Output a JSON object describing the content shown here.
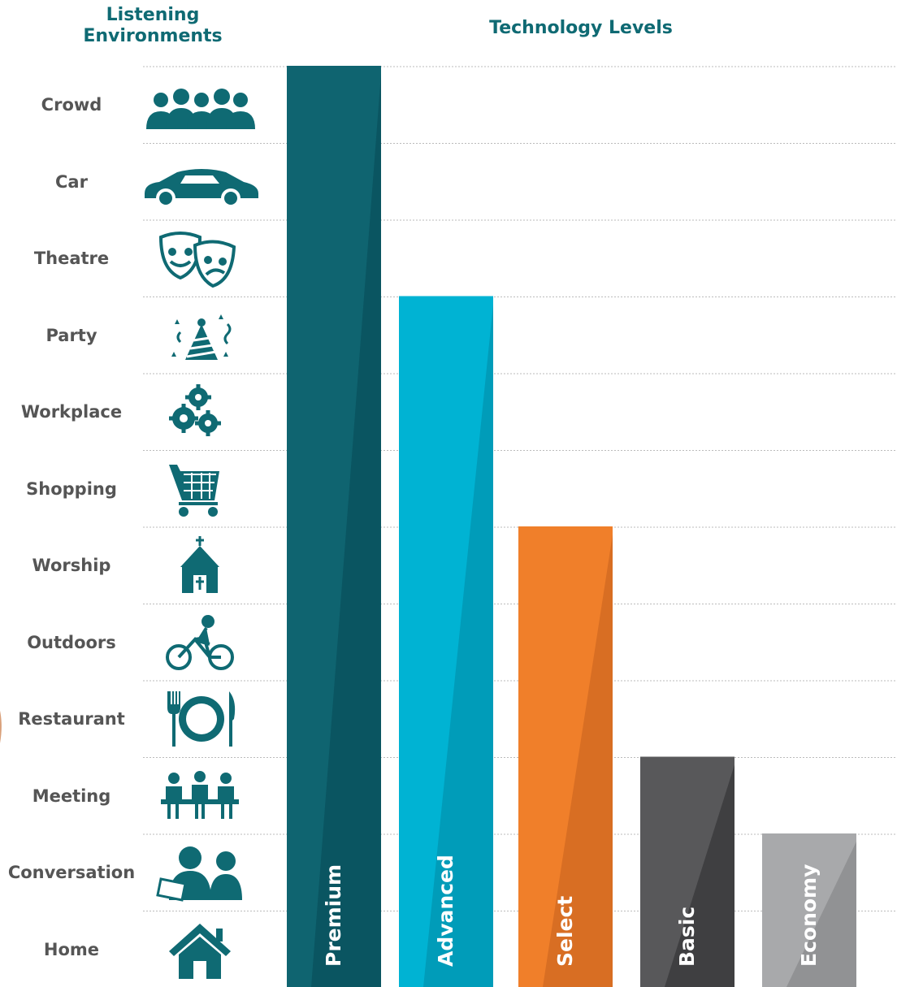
{
  "headers": {
    "left": "Listening\nEnvironments",
    "right": "Technology Levels"
  },
  "environments": [
    {
      "label": "Crowd",
      "icon": "crowd-icon"
    },
    {
      "label": "Car",
      "icon": "car-icon"
    },
    {
      "label": "Theatre",
      "icon": "theatre-masks-icon"
    },
    {
      "label": "Party",
      "icon": "party-hat-icon"
    },
    {
      "label": "Workplace",
      "icon": "gears-icon"
    },
    {
      "label": "Shopping",
      "icon": "shopping-cart-icon"
    },
    {
      "label": "Worship",
      "icon": "church-icon"
    },
    {
      "label": "Outdoors",
      "icon": "cyclist-icon"
    },
    {
      "label": "Restaurant",
      "icon": "plate-cutlery-icon"
    },
    {
      "label": "Meeting",
      "icon": "meeting-icon"
    },
    {
      "label": "Conversation",
      "icon": "conversation-icon"
    },
    {
      "label": "Home",
      "icon": "house-icon"
    }
  ],
  "chart_data": {
    "type": "bar",
    "title": "Technology Levels",
    "categories": [
      "Premium",
      "Advanced",
      "Select",
      "Basic",
      "Economy"
    ],
    "values": [
      12,
      9,
      6,
      3,
      2
    ],
    "value_categories": [
      [
        "Crowd",
        "Car",
        "Theatre",
        "Party",
        "Workplace",
        "Shopping",
        "Worship",
        "Outdoors",
        "Restaurant",
        "Meeting",
        "Conversation",
        "Home"
      ],
      [
        "Party",
        "Workplace",
        "Shopping",
        "Worship",
        "Outdoors",
        "Restaurant",
        "Meeting",
        "Conversation",
        "Home"
      ],
      [
        "Worship",
        "Outdoors",
        "Restaurant",
        "Meeting",
        "Conversation",
        "Home"
      ],
      [
        "Meeting",
        "Conversation",
        "Home"
      ],
      [
        "Conversation",
        "Home"
      ]
    ],
    "ylim": [
      0,
      12
    ],
    "grid": true,
    "colors": [
      "#0f6470",
      "#00b3d3",
      "#f07f2a",
      "#58585a",
      "#a8a9ab"
    ],
    "shade_colors": [
      "#0a5561",
      "#009cb9",
      "#d86e23",
      "#3f3f41",
      "#919294"
    ]
  }
}
